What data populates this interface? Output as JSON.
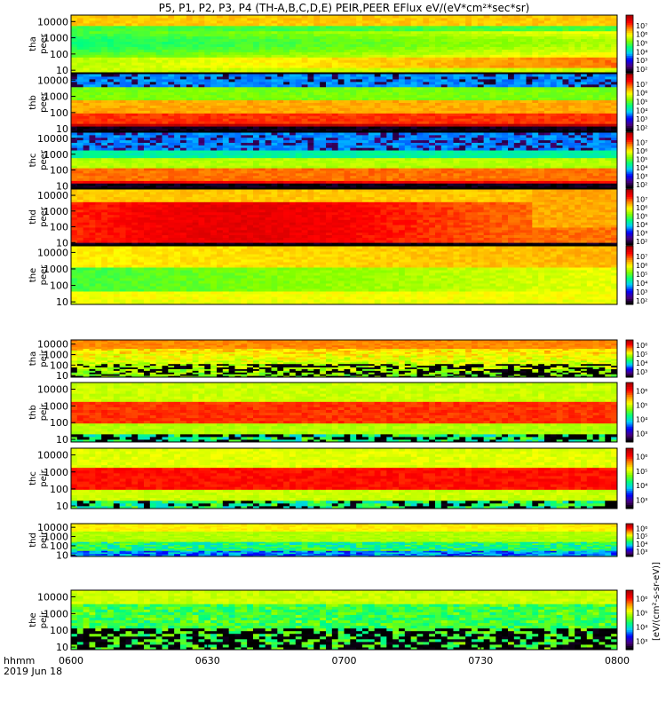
{
  "chart_data": {
    "type": "heatmap",
    "title": "P5, P1, P2, P3, P4 (TH-A,B,C,D,E) PEIR,PEER EFlux eV/(eV*cm²*sec*sr)",
    "time_axis": {
      "ticks": [
        "0600",
        "0630",
        "0700",
        "0730",
        "0800"
      ],
      "corner_label_line1": "hhmm",
      "corner_label_line2": "2019 Jun 18"
    },
    "energy_ticks": [
      "10",
      "100",
      "1000",
      "10000"
    ],
    "energy_range_eV": [
      7,
      25000
    ],
    "log_scale_y": true,
    "colorscale": [
      "#000000",
      "#4b0082",
      "#0000ff",
      "#00c8ff",
      "#00ff7f",
      "#7fff00",
      "#ffff00",
      "#ff8c00",
      "#ff0000",
      "#b00000"
    ],
    "colorbar_label": "[eV/(cm²-s-sr-eV)]",
    "panels": [
      {
        "label_line1": "tha",
        "label_line2": "peer",
        "colorbar_ticks": [
          "10²",
          "10³",
          "10⁴",
          "10⁵",
          "10⁶",
          "10⁷",
          "10⁸"
        ],
        "colorbar_range_exp": [
          1.6,
          8.2
        ]
      },
      {
        "label_line1": "thb",
        "label_line2": "peer",
        "colorbar_ticks": [
          "10²",
          "10³",
          "10⁴",
          "10⁵",
          "10⁶",
          "10⁷",
          "10⁸"
        ],
        "colorbar_range_exp": [
          1.6,
          8.2
        ]
      },
      {
        "label_line1": "thc",
        "label_line2": "peer",
        "colorbar_ticks": [
          "10²",
          "10³",
          "10⁴",
          "10⁵",
          "10⁶",
          "10⁷",
          "10⁸"
        ],
        "colorbar_range_exp": [
          1.6,
          8.2
        ]
      },
      {
        "label_line1": "thd",
        "label_line2": "peer",
        "colorbar_ticks": [
          "10²",
          "10³",
          "10⁴",
          "10⁵",
          "10⁶",
          "10⁷",
          "10⁸"
        ],
        "colorbar_range_exp": [
          1.6,
          8.2
        ]
      },
      {
        "label_line1": "the",
        "label_line2": "peer",
        "colorbar_ticks": [
          "10²",
          "10³",
          "10⁴",
          "10⁵",
          "10⁶",
          "10⁷",
          "10⁸"
        ],
        "colorbar_range_exp": [
          1.6,
          8.2
        ]
      },
      {
        "label_line1": "tha",
        "label_line2": "peir",
        "colorbar_ticks": [
          "10³",
          "10⁴",
          "10⁵",
          "10⁶"
        ],
        "colorbar_range_exp": [
          2.4,
          6.6
        ]
      },
      {
        "label_line1": "thb",
        "label_line2": "peir",
        "colorbar_ticks": [
          "10³",
          "10⁴",
          "10⁵",
          "10⁶"
        ],
        "colorbar_range_exp": [
          2.4,
          6.6
        ]
      },
      {
        "label_line1": "thc",
        "label_line2": "peir",
        "colorbar_ticks": [
          "10³",
          "10⁴",
          "10⁵",
          "10⁶"
        ],
        "colorbar_range_exp": [
          2.4,
          6.6
        ]
      },
      {
        "label_line1": "thd",
        "label_line2": "peir",
        "colorbar_ticks": [
          "10³",
          "10⁴",
          "10⁵",
          "10⁶"
        ],
        "colorbar_range_exp": [
          2.4,
          6.6
        ]
      },
      {
        "label_line1": "the",
        "label_line2": "peir",
        "colorbar_ticks": [
          "10³",
          "10⁴",
          "10⁵",
          "10⁶"
        ],
        "colorbar_range_exp": [
          2.4,
          6.6
        ]
      }
    ]
  }
}
